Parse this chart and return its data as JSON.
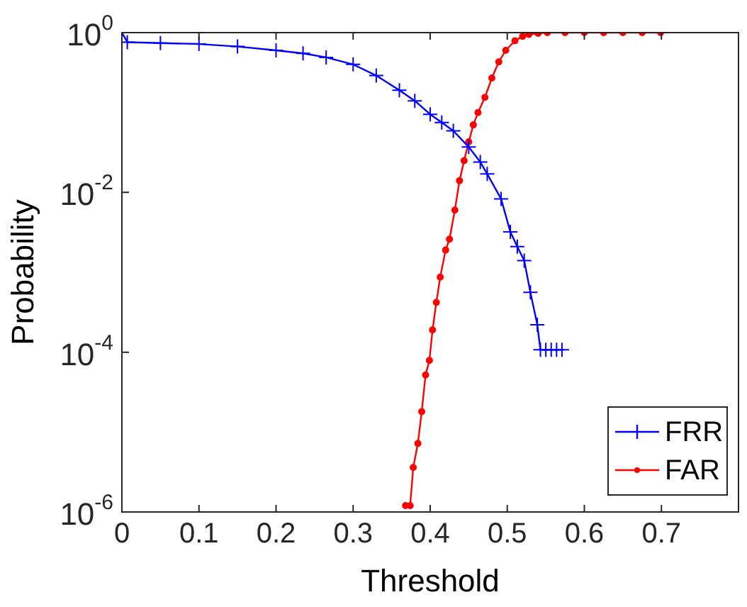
{
  "chart_data": {
    "type": "line",
    "xlabel": "Threshold",
    "ylabel": "Probability",
    "log": "y",
    "legend": "bottom right",
    "grid": false,
    "xlim": [
      0,
      0.8
    ],
    "xticks": [
      0,
      0.1,
      0.2,
      0.3,
      0.4,
      0.5,
      0.6,
      0.7
    ],
    "ylim": [
      1e-06,
      1
    ],
    "yticks": [
      {
        "value": 1e-06,
        "label": "10$^{-6}$"
      },
      {
        "value": 0.0001,
        "label": "10$^{-4}$"
      },
      {
        "value": 0.01,
        "label": "10$^{-2}$"
      },
      {
        "value": 1,
        "label": "10$^{0}$"
      }
    ],
    "series": [
      {
        "name": "FRR",
        "color": "#0000ff",
        "marker": "cross",
        "x": [
          0,
          0.007,
          0.05,
          0.1,
          0.15,
          0.2,
          0.235,
          0.265,
          0.3,
          0.33,
          0.36,
          0.38,
          0.4,
          0.415,
          0.43,
          0.45,
          0.465,
          0.474,
          0.492,
          0.504,
          0.513,
          0.522,
          0.53,
          0.539,
          0.543,
          0.55,
          0.557,
          0.564,
          0.571
        ],
        "values": [
          1,
          0.76,
          0.74,
          0.72,
          0.67,
          0.6,
          0.55,
          0.49,
          0.4,
          0.29,
          0.19,
          0.14,
          0.095,
          0.075,
          0.059,
          0.037,
          0.024,
          0.017,
          0.0083,
          0.0032,
          0.0021,
          0.0014,
          0.00056,
          0.00022,
          0.000107,
          0.000107,
          0.000107,
          0.000107,
          0.000107
        ]
      },
      {
        "name": "FAR",
        "color": "#ff0000",
        "marker": "circle",
        "x": [
          0.368,
          0.374,
          0.378,
          0.384,
          0.389,
          0.394,
          0.399,
          0.403,
          0.408,
          0.413,
          0.42,
          0.425,
          0.432,
          0.438,
          0.444,
          0.45,
          0.456,
          0.462,
          0.471,
          0.48,
          0.489,
          0.498,
          0.51,
          0.52,
          0.528,
          0.54,
          0.552,
          0.575,
          0.6,
          0.625,
          0.65,
          0.675,
          0.699
        ],
        "values": [
          1.2e-06,
          1.2e-06,
          3.6e-06,
          7.2e-06,
          1.8e-05,
          5.2e-05,
          7.9e-05,
          0.00019,
          0.00042,
          0.00087,
          0.0019,
          0.0026,
          0.006,
          0.014,
          0.025,
          0.043,
          0.07,
          0.1,
          0.155,
          0.27,
          0.43,
          0.6,
          0.79,
          0.9,
          0.95,
          0.98,
          1,
          1,
          1,
          1,
          1,
          1,
          1
        ]
      }
    ]
  }
}
